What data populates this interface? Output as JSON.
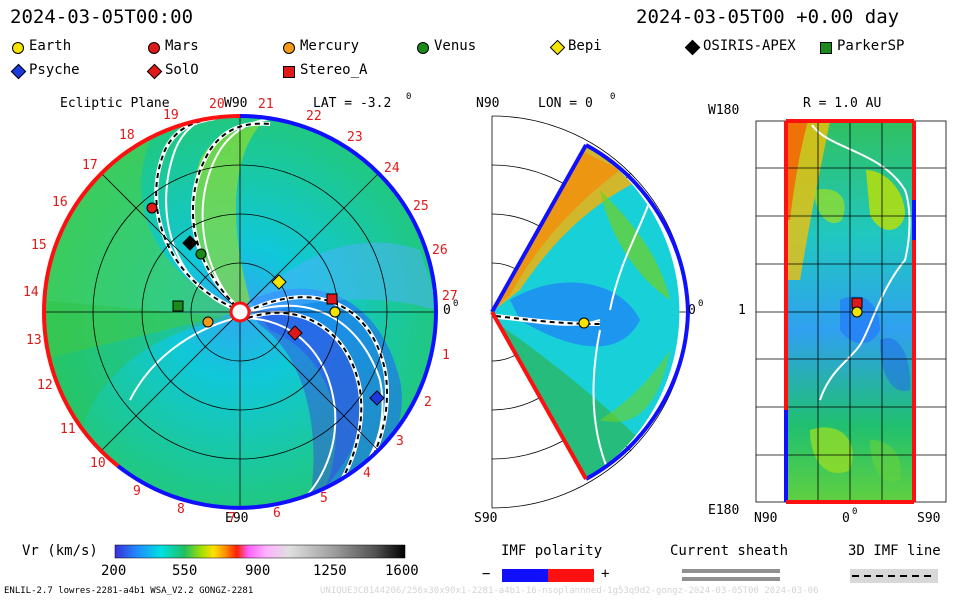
{
  "header": {
    "left_time": "2024-03-05T00:00",
    "right_time": "2024-03-05T00 +0.00 day"
  },
  "legend": [
    {
      "name": "Earth",
      "marker": "circle",
      "color": "#f4e400"
    },
    {
      "name": "Mars",
      "marker": "circle",
      "color": "#e01818"
    },
    {
      "name": "Mercury",
      "marker": "circle",
      "color": "#f49a1a"
    },
    {
      "name": "Venus",
      "marker": "circle",
      "color": "#1a8a1a"
    },
    {
      "name": "Bepi",
      "marker": "diamond",
      "color": "#f4e400"
    },
    {
      "name": "OSIRIS-APEX",
      "marker": "diamond",
      "color": "#000000"
    },
    {
      "name": "ParkerSP",
      "marker": "square",
      "color": "#1a8a1a"
    },
    {
      "name": "Psyche",
      "marker": "diamond",
      "color": "#1a3ae0"
    },
    {
      "name": "SolO",
      "marker": "diamond",
      "color": "#e01818"
    },
    {
      "name": "Stereo_A",
      "marker": "square",
      "color": "#e01818"
    }
  ],
  "ecliptic": {
    "title": "Ecliptic Plane",
    "lat_label": "LAT = -3.2",
    "deg": "0",
    "top": "W90",
    "bottom": "E90",
    "right": "0",
    "numbers": [
      "1",
      "2",
      "3",
      "4",
      "5",
      "6",
      "7",
      "8",
      "9",
      "10",
      "11",
      "12",
      "13",
      "14",
      "15",
      "16",
      "17",
      "18",
      "19",
      "20",
      "21",
      "22",
      "23",
      "24",
      "25",
      "26",
      "27"
    ]
  },
  "meridional": {
    "top": "N90",
    "lon_label": "LON = 0",
    "deg": "0",
    "right": "0",
    "bottom": "S90"
  },
  "sphere": {
    "top_left": "W180",
    "title": "R = 1.0 AU",
    "mid_left": "1",
    "bottom_left": "E180",
    "x_left": "N90",
    "x_mid": "0",
    "x_right": "S90"
  },
  "colorbar": {
    "label": "Vr (km/s)",
    "ticks": [
      "200",
      "550",
      "900",
      "1250",
      "1600"
    ],
    "stops": [
      "#3a2fd8",
      "#1e90ff",
      "#00e0e0",
      "#20c060",
      "#a8e000",
      "#ffe000",
      "#ff9000",
      "#ff2000",
      "#ff60ff",
      "#ffb0ff",
      "#e0e0e0",
      "#a0a0a0",
      "#505050",
      "#000000"
    ]
  },
  "imf": {
    "title": "IMF polarity",
    "minus": "−",
    "plus": "+",
    "neg_color": "#1010ff",
    "pos_color": "#ff1010"
  },
  "sheath": {
    "title": "Current sheath"
  },
  "imfline": {
    "title": "3D IMF line"
  },
  "footer": {
    "model": "ENLIL-2.7 lowres-2281-a4b1 WSA_V2.2 GONGZ-2281",
    "watermark": "UNIQUE3C8144206/256x30x90x1-2281-a4b1-16-nsoplannned-1g53q9d2-gongz-2024-03-05T00   2024-03-06"
  }
}
